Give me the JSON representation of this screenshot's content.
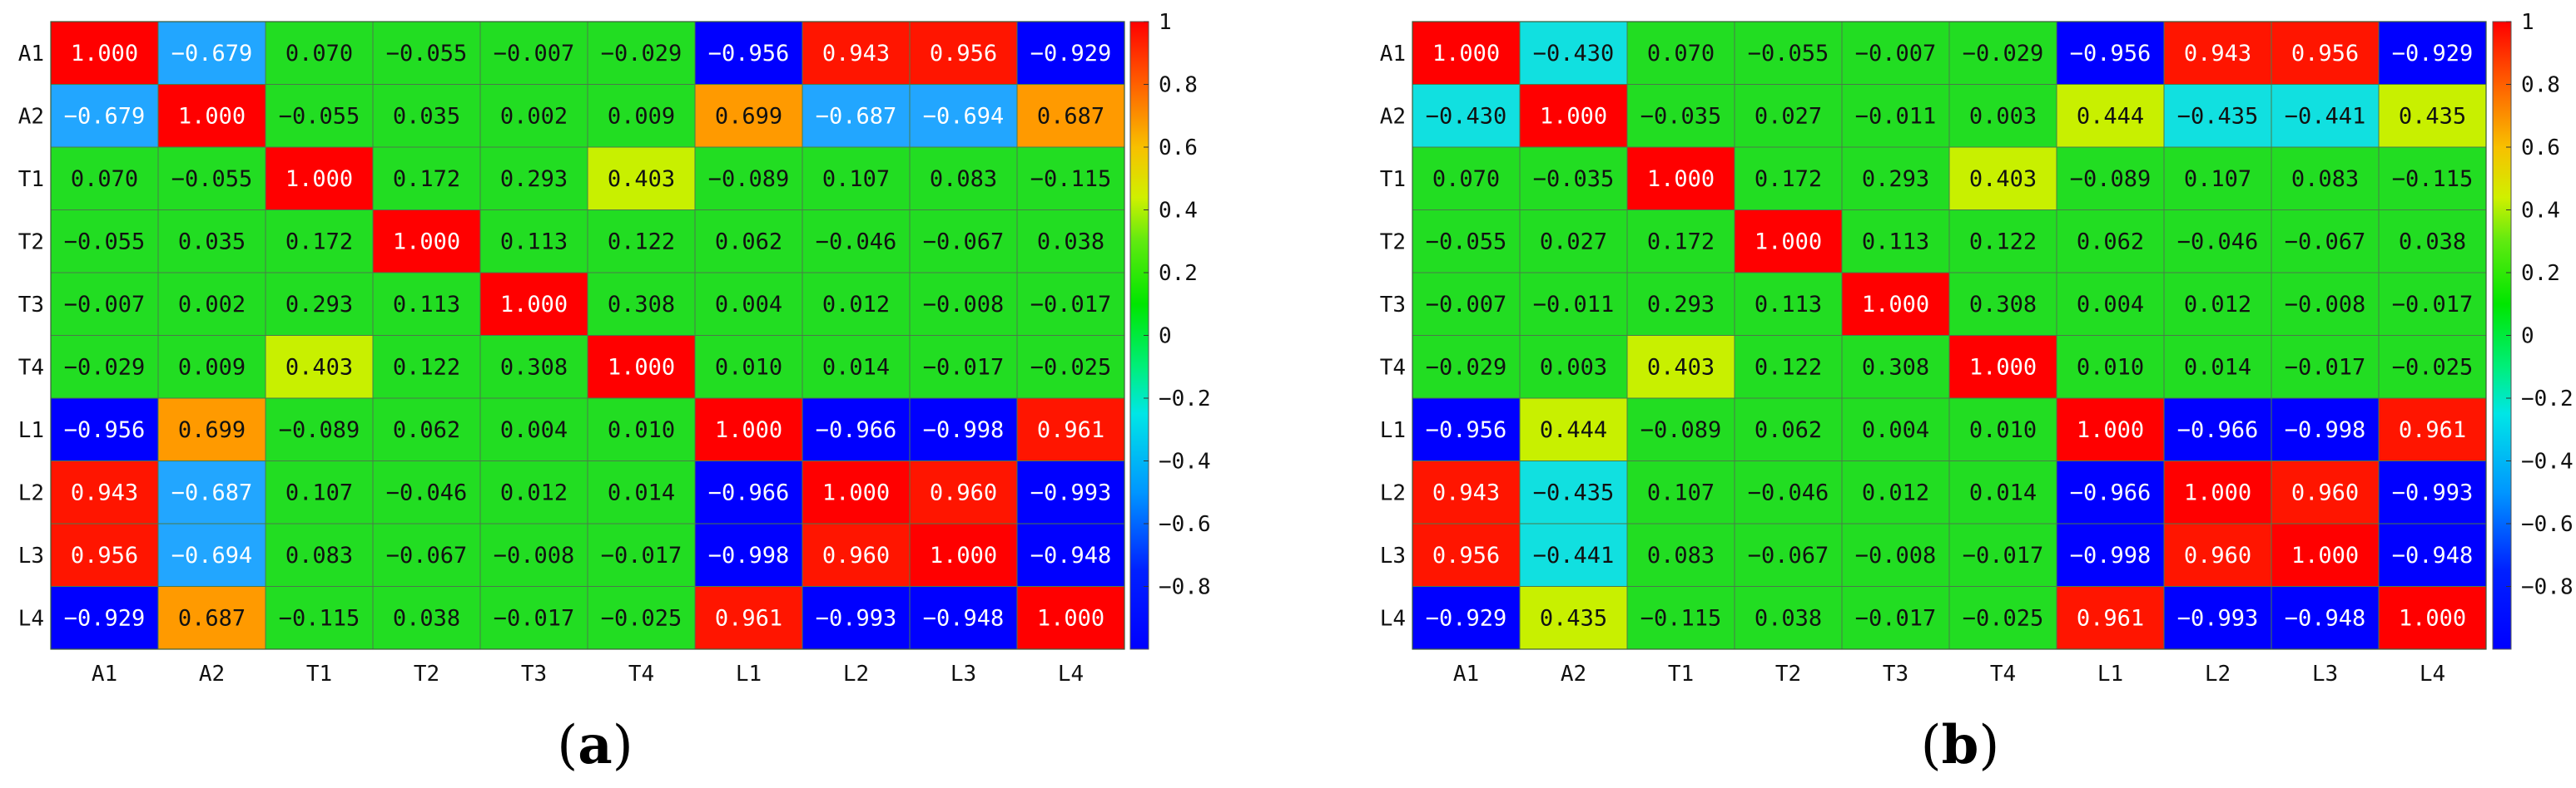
{
  "chart_data": [
    {
      "type": "heatmap",
      "panel_label": "a",
      "rows": [
        "A1",
        "A2",
        "T1",
        "T2",
        "T3",
        "T4",
        "L1",
        "L2",
        "L3",
        "L4"
      ],
      "cols": [
        "A1",
        "A2",
        "T1",
        "T2",
        "T3",
        "T4",
        "L1",
        "L2",
        "L3",
        "L4"
      ],
      "values": [
        [
          1.0,
          -0.679,
          0.07,
          -0.055,
          -0.007,
          -0.029,
          -0.956,
          0.943,
          0.956,
          -0.929
        ],
        [
          -0.679,
          1.0,
          -0.055,
          0.035,
          0.002,
          0.009,
          0.699,
          -0.687,
          -0.694,
          0.687
        ],
        [
          0.07,
          -0.055,
          1.0,
          0.172,
          0.293,
          0.403,
          -0.089,
          0.107,
          0.083,
          -0.115
        ],
        [
          -0.055,
          0.035,
          0.172,
          1.0,
          0.113,
          0.122,
          0.062,
          -0.046,
          -0.067,
          0.038
        ],
        [
          -0.007,
          0.002,
          0.293,
          0.113,
          1.0,
          0.308,
          0.004,
          0.012,
          -0.008,
          -0.017
        ],
        [
          -0.029,
          0.009,
          0.403,
          0.122,
          0.308,
          1.0,
          0.01,
          0.014,
          -0.017,
          -0.025
        ],
        [
          -0.956,
          0.699,
          -0.089,
          0.062,
          0.004,
          0.01,
          1.0,
          -0.966,
          -0.998,
          0.961
        ],
        [
          0.943,
          -0.687,
          0.107,
          -0.046,
          0.012,
          0.014,
          -0.966,
          1.0,
          0.96,
          -0.993
        ],
        [
          0.956,
          -0.694,
          0.083,
          -0.067,
          -0.008,
          -0.017,
          -0.998,
          0.96,
          1.0,
          -0.948
        ],
        [
          -0.929,
          0.687,
          -0.115,
          0.038,
          -0.017,
          -0.025,
          0.961,
          -0.993,
          -0.948,
          1.0
        ]
      ],
      "colorbar": {
        "range": [
          -1,
          1
        ],
        "ticks": [
          1,
          0.8,
          0.6,
          0.4,
          0.2,
          0,
          -0.2,
          -0.4,
          -0.6,
          -0.8
        ],
        "tick_labels": [
          "1",
          "0.8",
          "0.6",
          "0.4",
          "0.2",
          "0",
          "−0.2",
          "−0.4",
          "−0.6",
          "−0.8"
        ],
        "colormap": "jet"
      }
    },
    {
      "type": "heatmap",
      "panel_label": "b",
      "rows": [
        "A1",
        "A2",
        "T1",
        "T2",
        "T3",
        "T4",
        "L1",
        "L2",
        "L3",
        "L4"
      ],
      "cols": [
        "A1",
        "A2",
        "T1",
        "T2",
        "T3",
        "T4",
        "L1",
        "L2",
        "L3",
        "L4"
      ],
      "values": [
        [
          1.0,
          -0.43,
          0.07,
          -0.055,
          -0.007,
          -0.029,
          -0.956,
          0.943,
          0.956,
          -0.929
        ],
        [
          -0.43,
          1.0,
          -0.035,
          0.027,
          -0.011,
          0.003,
          0.444,
          -0.435,
          -0.441,
          0.435
        ],
        [
          0.07,
          -0.035,
          1.0,
          0.172,
          0.293,
          0.403,
          -0.089,
          0.107,
          0.083,
          -0.115
        ],
        [
          -0.055,
          0.027,
          0.172,
          1.0,
          0.113,
          0.122,
          0.062,
          -0.046,
          -0.067,
          0.038
        ],
        [
          -0.007,
          -0.011,
          0.293,
          0.113,
          1.0,
          0.308,
          0.004,
          0.012,
          -0.008,
          -0.017
        ],
        [
          -0.029,
          0.003,
          0.403,
          0.122,
          0.308,
          1.0,
          0.01,
          0.014,
          -0.017,
          -0.025
        ],
        [
          -0.956,
          0.444,
          -0.089,
          0.062,
          0.004,
          0.01,
          1.0,
          -0.966,
          -0.998,
          0.961
        ],
        [
          0.943,
          -0.435,
          0.107,
          -0.046,
          0.012,
          0.014,
          -0.966,
          1.0,
          0.96,
          -0.993
        ],
        [
          0.956,
          -0.441,
          0.083,
          -0.067,
          -0.008,
          -0.017,
          -0.998,
          0.96,
          1.0,
          -0.948
        ],
        [
          -0.929,
          0.435,
          -0.115,
          0.038,
          -0.017,
          -0.025,
          0.961,
          -0.993,
          -0.948,
          1.0
        ]
      ],
      "colorbar": {
        "range": [
          -1,
          1
        ],
        "ticks": [
          1,
          0.8,
          0.6,
          0.4,
          0.2,
          0,
          -0.2,
          -0.4,
          -0.6,
          -0.8
        ],
        "tick_labels": [
          "1",
          "0.8",
          "0.6",
          "0.4",
          "0.2",
          "0",
          "−0.2",
          "−0.4",
          "−0.6",
          "−0.8"
        ],
        "colormap": "jet"
      }
    }
  ]
}
